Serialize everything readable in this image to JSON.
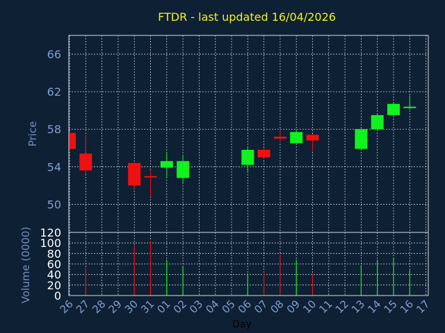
{
  "colors": {
    "background": "#0e2034",
    "title": "#f2f21a",
    "axis_text": "#7f9fcf",
    "axis_title": "#6f8fbf",
    "frame": "#d8dce4",
    "grid": "#c8ccd4",
    "up": "#11f21f",
    "down": "#f01010",
    "volume_text": "#ffffff"
  },
  "chart_data": [
    {
      "type": "candlestick",
      "title": "FTDR - last updated 16/04/2026",
      "ylabel": "Price",
      "xlabel": "Day",
      "ylim": [
        47,
        68
      ],
      "yticks": [
        50,
        54,
        58,
        62,
        66
      ],
      "grid": true,
      "x": [
        "26",
        "27",
        "28",
        "29",
        "30",
        "31",
        "01",
        "02",
        "03",
        "04",
        "05",
        "06",
        "07",
        "08",
        "09",
        "10",
        "11",
        "12",
        "13",
        "14",
        "15",
        "16",
        "17"
      ],
      "candles": [
        {
          "day": "26",
          "open": 57.6,
          "close": 55.9,
          "high": 57.8,
          "low": 55.7
        },
        {
          "day": "27",
          "open": 55.4,
          "close": 53.6,
          "high": 57.4,
          "low": 53.2
        },
        {
          "day": "30",
          "open": 54.4,
          "close": 52.0,
          "high": 54.6,
          "low": 51.6
        },
        {
          "day": "31",
          "open": 53.0,
          "close": 52.9,
          "high": 53.6,
          "low": 50.8
        },
        {
          "day": "01",
          "open": 53.9,
          "close": 54.6,
          "high": 55.6,
          "low": 52.8
        },
        {
          "day": "02",
          "open": 52.8,
          "close": 54.6,
          "high": 55.2,
          "low": 52.3
        },
        {
          "day": "06",
          "open": 54.2,
          "close": 55.8,
          "high": 56.1,
          "low": 53.5
        },
        {
          "day": "07",
          "open": 55.8,
          "close": 55.0,
          "high": 56.0,
          "low": 54.9
        },
        {
          "day": "08",
          "open": 57.2,
          "close": 57.0,
          "high": 58.0,
          "low": 56.6
        },
        {
          "day": "09",
          "open": 56.5,
          "close": 57.7,
          "high": 57.9,
          "low": 56.4
        },
        {
          "day": "10",
          "open": 57.4,
          "close": 56.8,
          "high": 57.5,
          "low": 55.6
        },
        {
          "day": "13",
          "open": 55.9,
          "close": 58.0,
          "high": 58.2,
          "low": 55.9
        },
        {
          "day": "14",
          "open": 58.0,
          "close": 59.5,
          "high": 59.6,
          "low": 57.9
        },
        {
          "day": "15",
          "open": 59.5,
          "close": 60.7,
          "high": 60.8,
          "low": 59.4
        },
        {
          "day": "16",
          "open": 60.3,
          "close": 60.4,
          "high": 61.6,
          "low": 60.1
        }
      ]
    },
    {
      "type": "bar",
      "ylabel": "Volume (0000)",
      "ylim": [
        0,
        120
      ],
      "yticks": [
        0,
        20,
        40,
        60,
        80,
        100,
        120
      ],
      "grid": true,
      "categories": [
        "27",
        "30",
        "31",
        "01",
        "02",
        "06",
        "07",
        "08",
        "09",
        "10",
        "13",
        "14",
        "15",
        "16"
      ],
      "values": [
        52,
        95,
        104,
        68,
        55,
        42,
        45,
        78,
        68,
        42,
        58,
        68,
        72,
        48
      ],
      "direction": [
        "down",
        "down",
        "down",
        "up",
        "up",
        "up",
        "down",
        "down",
        "up",
        "down",
        "up",
        "up",
        "up",
        "up"
      ]
    }
  ]
}
